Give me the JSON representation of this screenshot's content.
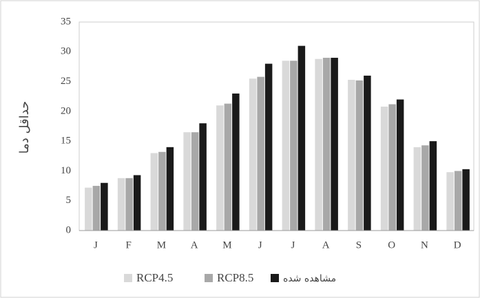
{
  "chart_data": {
    "type": "bar",
    "y_label": "حداقل دما",
    "categories": [
      "J",
      "F",
      "M",
      "A",
      "M",
      "J",
      "J",
      "A",
      "S",
      "O",
      "N",
      "D"
    ],
    "series": [
      {
        "name": "RCP4.5",
        "color": "#d9d9d9",
        "values": [
          7.2,
          8.8,
          13,
          16.5,
          21,
          25.5,
          28.5,
          28.8,
          25.3,
          20.8,
          14,
          9.8
        ]
      },
      {
        "name": "RCP8.5",
        "color": "#a8a8a8",
        "values": [
          7.5,
          8.8,
          13.2,
          16.5,
          21.3,
          25.8,
          28.5,
          29,
          25.2,
          21.2,
          14.3,
          10
        ]
      },
      {
        "name": "مشاهده شده",
        "color": "#1a1a1a",
        "values": [
          8,
          9.3,
          14,
          18,
          23,
          28,
          31,
          29,
          26,
          22,
          15,
          10.3
        ]
      }
    ],
    "ylim": [
      0,
      35
    ],
    "yticks": [
      0,
      5,
      10,
      15,
      20,
      25,
      30,
      35
    ],
    "grid": false
  }
}
